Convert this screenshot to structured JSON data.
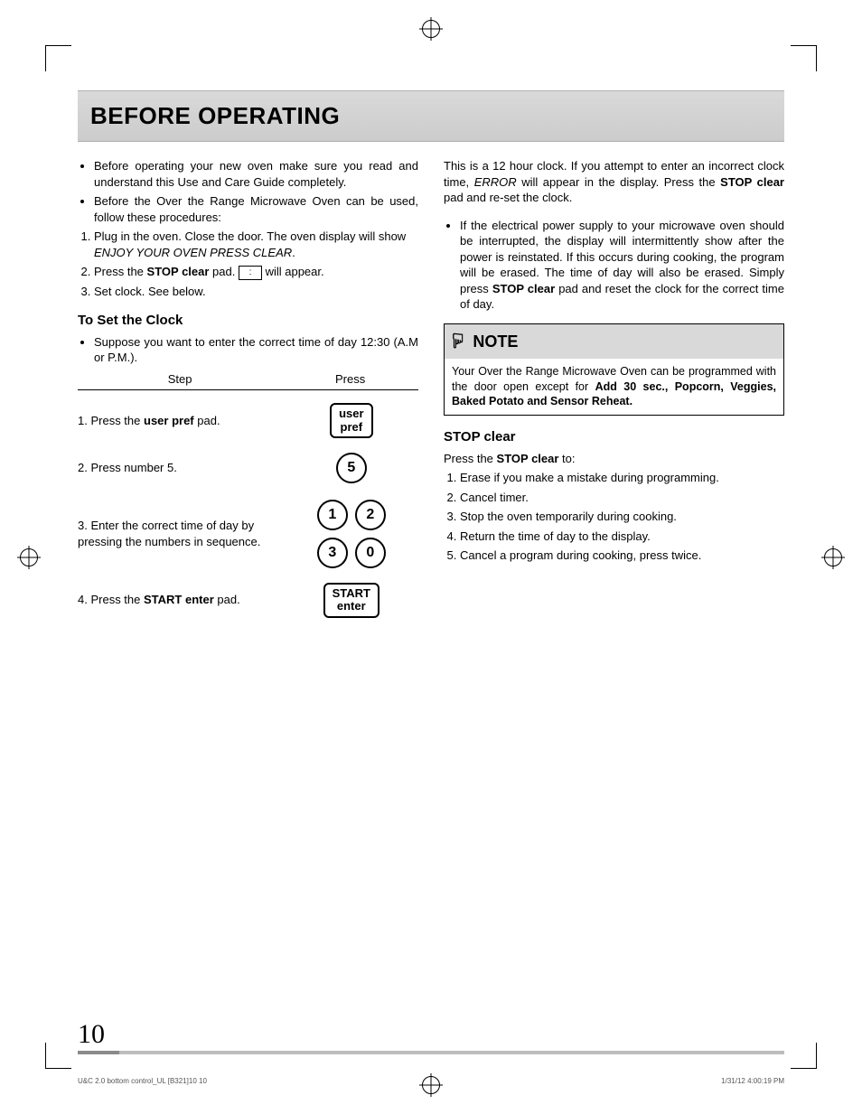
{
  "title": "BEFORE OPERATING",
  "left": {
    "bullets": [
      "Before operating your new oven make sure you read and understand this Use and Care Guide completely.",
      "Before the Over the Range Microwave Oven can be used, follow these procedures:"
    ],
    "numbered": [
      {
        "pre": "Plug in the oven. Close the door. The oven display will show ",
        "italic": "ENJOY YOUR OVEN PRESS CLEAR",
        "post": "."
      },
      {
        "pre": "Press the ",
        "bold": "STOP clear",
        "mid": " pad. ",
        "display": true,
        "post": " will appear."
      },
      {
        "pre": "Set clock. See below."
      }
    ],
    "clock_heading": "To Set the Clock",
    "clock_bullet": "Suppose you want to enter the correct time of day 12:30 (A.M or P.M.).",
    "table_header": {
      "step": "Step",
      "press": "Press"
    },
    "steps": [
      {
        "n": "1.",
        "pre": "Press the ",
        "bold": "user pref",
        "post": " pad.",
        "btn_type": "rect",
        "btn_lines": [
          "user",
          "pref"
        ]
      },
      {
        "n": "2.",
        "pre": "Press number 5.",
        "btn_type": "circ",
        "btn_rows": [
          [
            "5"
          ]
        ]
      },
      {
        "n": "3.",
        "pre": "Enter the correct time of day by pressing the numbers in sequence.",
        "btn_type": "circ",
        "btn_rows": [
          [
            "1",
            "2"
          ],
          [
            "3",
            "0"
          ]
        ]
      },
      {
        "n": "4.",
        "pre": "Press the ",
        "bold": "START enter",
        "post": " pad.",
        "btn_type": "rect",
        "btn_lines": [
          "START",
          "enter"
        ]
      }
    ]
  },
  "right": {
    "para1_pre": "This is a 12 hour clock. If you attempt to enter an incorrect clock time, ",
    "para1_italic": "ERROR",
    "para1_mid": " will appear in the display. Press the ",
    "para1_bold": "STOP clear",
    "para1_post": " pad and re-set the clock.",
    "bullet_pre": "If the electrical power supply to your microwave oven should be interrupted, the display will intermittently show after the power is reinstated. If this occurs during cooking, the program will be erased. The time of day will also be erased. Simply press ",
    "bullet_bold": "STOP clear",
    "bullet_post": " pad and reset the clock for the correct time of day.",
    "note_label": "NOTE",
    "note_body_pre": "Your Over the Range Microwave Oven can be programmed with the door open except for ",
    "note_body_bold": "Add 30 sec., Popcorn, Veggies, Baked Potato and Sensor Reheat.",
    "stop_heading": "STOP clear",
    "stop_intro_pre": "Press the ",
    "stop_intro_bold": "STOP clear",
    "stop_intro_post": " to:",
    "stop_list": [
      "Erase if you make a mistake during programming.",
      "Cancel timer.",
      "Stop the oven temporarily during cooking.",
      "Return the time of day to the display.",
      "Cancel a program during cooking, press twice."
    ]
  },
  "page_number": "10",
  "footer_left": "U&C 2.0 bottom control_UL [B321]10   10",
  "footer_right": "1/31/12   4:00:19 PM"
}
